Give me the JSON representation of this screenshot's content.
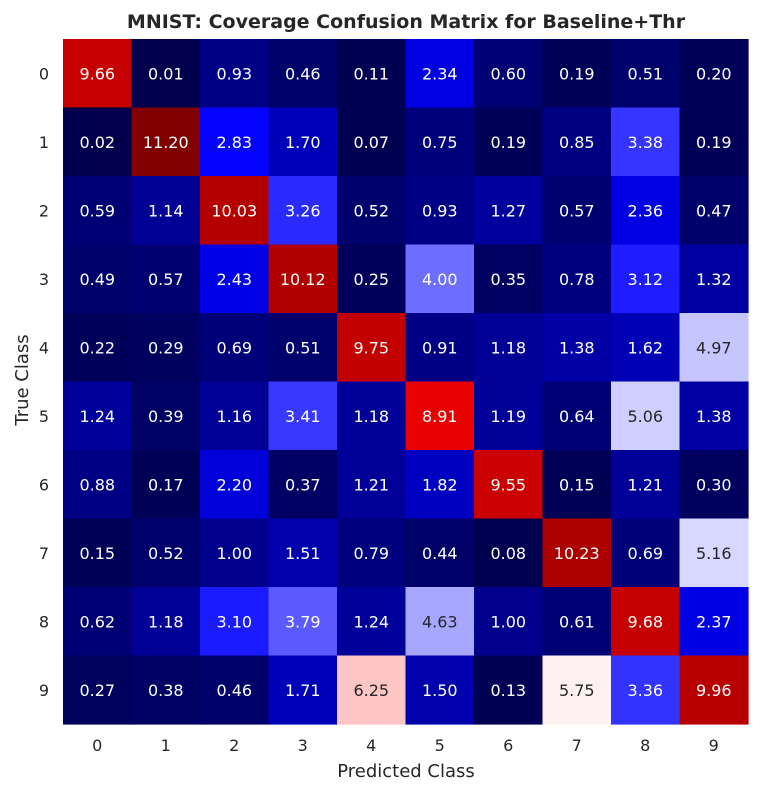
{
  "chart_data": {
    "type": "heatmap",
    "title": "MNIST: Coverage Confusion Matrix for Baseline+Thr",
    "xlabel": "Predicted Class",
    "ylabel": "True Class",
    "x_categories": [
      "0",
      "1",
      "2",
      "3",
      "4",
      "5",
      "6",
      "7",
      "8",
      "9"
    ],
    "y_categories": [
      "0",
      "1",
      "2",
      "3",
      "4",
      "5",
      "6",
      "7",
      "8",
      "9"
    ],
    "values": [
      [
        9.66,
        0.01,
        0.93,
        0.46,
        0.11,
        2.34,
        0.6,
        0.19,
        0.51,
        0.2
      ],
      [
        0.02,
        11.2,
        2.83,
        1.7,
        0.07,
        0.75,
        0.19,
        0.85,
        3.38,
        0.19
      ],
      [
        0.59,
        1.14,
        10.03,
        3.26,
        0.52,
        0.93,
        1.27,
        0.57,
        2.36,
        0.47
      ],
      [
        0.49,
        0.57,
        2.43,
        10.12,
        0.25,
        4.0,
        0.35,
        0.78,
        3.12,
        1.32
      ],
      [
        0.22,
        0.29,
        0.69,
        0.51,
        9.75,
        0.91,
        1.18,
        1.38,
        1.62,
        4.97
      ],
      [
        1.24,
        0.39,
        1.16,
        3.41,
        1.18,
        8.91,
        1.19,
        0.64,
        5.06,
        1.38
      ],
      [
        0.88,
        0.17,
        2.2,
        0.37,
        1.21,
        1.82,
        9.55,
        0.15,
        1.21,
        0.3
      ],
      [
        0.15,
        0.52,
        1.0,
        1.51,
        0.79,
        0.44,
        0.08,
        10.23,
        0.69,
        5.16
      ],
      [
        0.62,
        1.18,
        3.1,
        3.79,
        1.24,
        4.63,
        1.0,
        0.61,
        9.68,
        2.37
      ],
      [
        0.27,
        0.38,
        0.46,
        1.71,
        6.25,
        1.5,
        0.13,
        5.75,
        3.36,
        9.96
      ]
    ],
    "colormap": "seismic",
    "vmin": 0,
    "vmax": 11.2,
    "value_format": "2 decimals",
    "grid": false,
    "legend": "none"
  }
}
